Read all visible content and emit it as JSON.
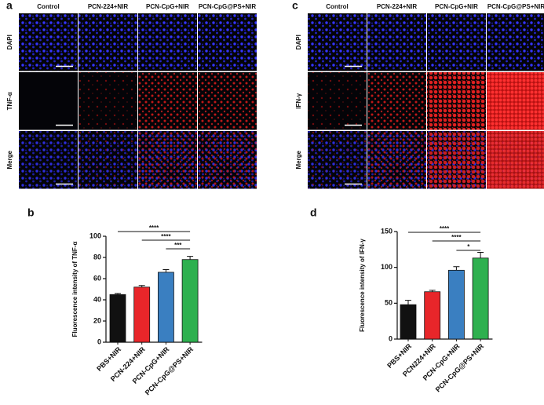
{
  "panels": [
    {
      "label": "a",
      "columns": [
        "Control",
        "PCN-224+NIR",
        "PCN-CpG+NIR",
        "PCN-CpG@PS+NIR"
      ],
      "rows": [
        "DAPI",
        "TNF-α",
        "Merge"
      ]
    },
    {
      "label": "c",
      "columns": [
        "Control",
        "PCN-224+NIR",
        "PCN-CpG+NIR",
        "PCN-CpG@PS+NIR"
      ],
      "rows": [
        "DAPI",
        "IFN-γ",
        "Merge"
      ]
    }
  ],
  "chart_data": [
    {
      "type": "bar",
      "label": "b",
      "y_label": "Fluorescence intensity of TNF-α",
      "categories": [
        "PBS+NIR",
        "PCN-224+NIR",
        "PCN-CpG+NIR",
        "PCN-CpG@PS+NIR"
      ],
      "values": [
        45,
        52,
        66,
        78
      ],
      "errors": [
        1,
        1.5,
        2.5,
        3
      ],
      "colors": [
        "#111111",
        "#e8262a",
        "#3a7fc1",
        "#2eb04f"
      ],
      "ylim": [
        0,
        100
      ],
      "yticks": [
        0,
        20,
        40,
        60,
        80,
        100
      ],
      "annotations": [
        {
          "label": "****",
          "from": 0,
          "to": 3
        },
        {
          "label": "****",
          "from": 1,
          "to": 3
        },
        {
          "label": "***",
          "from": 2,
          "to": 3
        }
      ]
    },
    {
      "type": "bar",
      "label": "d",
      "y_label": "Fluorescence intensity of IFN-γ",
      "categories": [
        "PBS+NIR",
        "PCN224+NIR",
        "PCN-CpG+NIR",
        "PCN-CpG@PS+NIR"
      ],
      "values": [
        48,
        66,
        96,
        113
      ],
      "errors": [
        6,
        2,
        5,
        8
      ],
      "colors": [
        "#111111",
        "#e8262a",
        "#3a7fc1",
        "#2eb04f"
      ],
      "ylim": [
        0,
        150
      ],
      "yticks": [
        0,
        50,
        100,
        150
      ],
      "annotations": [
        {
          "label": "****",
          "from": 0,
          "to": 3
        },
        {
          "label": "****",
          "from": 1,
          "to": 3
        },
        {
          "label": "*",
          "from": 2,
          "to": 3
        }
      ]
    }
  ]
}
